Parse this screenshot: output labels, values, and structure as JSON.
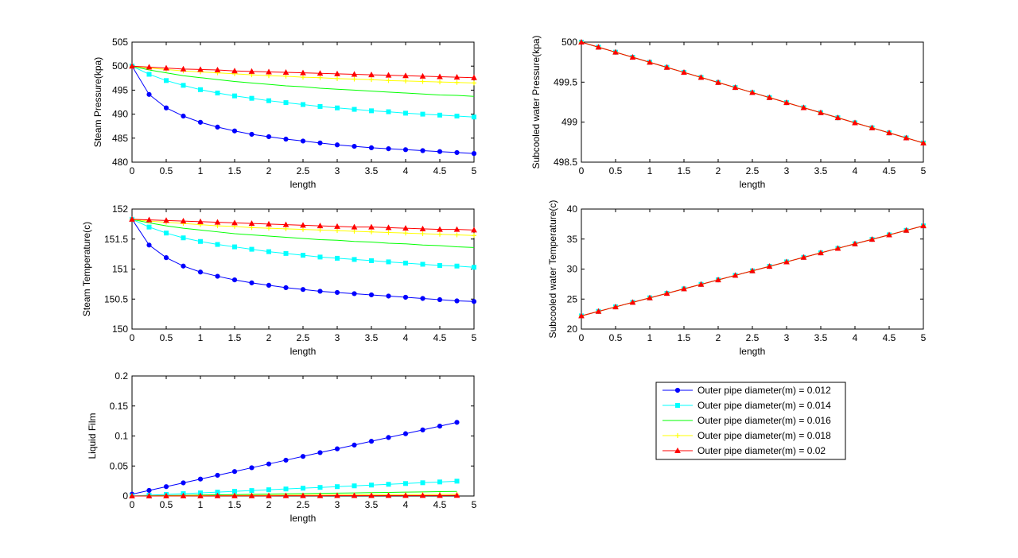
{
  "series_styles": [
    {
      "name": "Outer pipe diameter(m) = 0.012",
      "color": "#0000ff",
      "marker": "circle"
    },
    {
      "name": "Outer pipe diameter(m) = 0.014",
      "color": "#00ffff",
      "marker": "square"
    },
    {
      "name": "Outer pipe diameter(m) = 0.016",
      "color": "#00ff00",
      "marker": "none"
    },
    {
      "name": "Outer pipe diameter(m) = 0.018",
      "color": "#ffff00",
      "marker": "plus"
    },
    {
      "name": "Outer pipe diameter(m) = 0.02",
      "color": "#ff0000",
      "marker": "triangle"
    }
  ],
  "legend": {
    "placement": "below right plots",
    "entries": [
      "Outer pipe diameter(m) = 0.012",
      "Outer pipe diameter(m) = 0.014",
      "Outer pipe diameter(m) = 0.016",
      "Outer pipe diameter(m) = 0.018",
      "Outer pipe diameter(m) = 0.02"
    ]
  },
  "chart_data": [
    {
      "type": "line",
      "id": "steam-pressure",
      "xlabel": "length",
      "ylabel": "Steam Pressure(kpa)",
      "xlim": [
        0,
        5
      ],
      "ylim": [
        480,
        505
      ],
      "xticks": [
        "0",
        "0.5",
        "1",
        "1.5",
        "2",
        "2.5",
        "3",
        "3.5",
        "4",
        "4.5",
        "5"
      ],
      "yticks": [
        "480",
        "485",
        "490",
        "495",
        "500",
        "505"
      ],
      "x": [
        0,
        0.25,
        0.5,
        0.75,
        1,
        1.25,
        1.5,
        1.75,
        2,
        2.25,
        2.5,
        2.75,
        3,
        3.25,
        3.5,
        3.75,
        4,
        4.25,
        4.5,
        4.75,
        5
      ],
      "series": [
        {
          "name": "Outer pipe diameter(m) = 0.012",
          "values": [
            500,
            494.1,
            491.3,
            489.6,
            488.3,
            487.3,
            486.5,
            485.8,
            485.3,
            484.8,
            484.4,
            484.0,
            483.6,
            483.3,
            483.0,
            482.8,
            482.6,
            482.4,
            482.2,
            482.0,
            481.8
          ]
        },
        {
          "name": "Outer pipe diameter(m) = 0.014",
          "values": [
            500,
            498.3,
            497.0,
            496.0,
            495.1,
            494.4,
            493.8,
            493.3,
            492.8,
            492.4,
            492.0,
            491.6,
            491.3,
            491.0,
            490.7,
            490.5,
            490.2,
            490.0,
            489.8,
            489.6,
            489.4
          ]
        },
        {
          "name": "Outer pipe diameter(m) = 0.016",
          "values": [
            500,
            499.2,
            498.6,
            498.0,
            497.6,
            497.2,
            496.8,
            496.5,
            496.2,
            495.9,
            495.7,
            495.4,
            495.2,
            495.0,
            494.8,
            494.6,
            494.4,
            494.2,
            494.0,
            493.9,
            493.7
          ]
        },
        {
          "name": "Outer pipe diameter(m) = 0.018",
          "values": [
            500,
            499.6,
            499.3,
            499.0,
            498.8,
            498.6,
            498.4,
            498.2,
            498.0,
            497.9,
            497.7,
            497.6,
            497.4,
            497.3,
            497.2,
            497.0,
            496.9,
            496.8,
            496.7,
            496.6,
            496.5
          ]
        },
        {
          "name": "Outer pipe diameter(m) = 0.02",
          "values": [
            500,
            499.8,
            499.6,
            499.4,
            499.3,
            499.2,
            499.0,
            498.9,
            498.8,
            498.7,
            498.6,
            498.5,
            498.4,
            498.3,
            498.2,
            498.1,
            498.0,
            497.9,
            497.8,
            497.7,
            497.6
          ]
        }
      ]
    },
    {
      "type": "line",
      "id": "subcooled-pressure",
      "xlabel": "length",
      "ylabel": "Subcooled water Pressure(kpa)",
      "xlim": [
        0,
        5
      ],
      "ylim": [
        498.5,
        500
      ],
      "xticks": [
        "0",
        "0.5",
        "1",
        "1.5",
        "2",
        "2.5",
        "3",
        "3.5",
        "4",
        "4.5",
        "5"
      ],
      "yticks": [
        "498.5",
        "499",
        "499.5",
        "500"
      ],
      "x": [
        0,
        0.25,
        0.5,
        0.75,
        1,
        1.25,
        1.5,
        1.75,
        2,
        2.25,
        2.5,
        2.75,
        3,
        3.25,
        3.5,
        3.75,
        4,
        4.25,
        4.5,
        4.75,
        5
      ],
      "series": [
        {
          "name": "Outer pipe diameter(m) = 0.012",
          "values": [
            500,
            499.937,
            499.874,
            499.811,
            499.748,
            499.685,
            499.622,
            499.559,
            499.496,
            499.433,
            499.37,
            499.307,
            499.244,
            499.181,
            499.118,
            499.055,
            498.992,
            498.929,
            498.866,
            498.803,
            498.74
          ]
        },
        {
          "name": "Outer pipe diameter(m) = 0.014",
          "values": [
            500,
            499.937,
            499.874,
            499.811,
            499.748,
            499.685,
            499.622,
            499.559,
            499.496,
            499.433,
            499.37,
            499.307,
            499.244,
            499.181,
            499.118,
            499.055,
            498.992,
            498.929,
            498.866,
            498.803,
            498.74
          ]
        },
        {
          "name": "Outer pipe diameter(m) = 0.016",
          "values": [
            500,
            499.937,
            499.874,
            499.811,
            499.748,
            499.685,
            499.622,
            499.559,
            499.496,
            499.433,
            499.37,
            499.307,
            499.244,
            499.181,
            499.118,
            499.055,
            498.992,
            498.929,
            498.866,
            498.803,
            498.74
          ]
        },
        {
          "name": "Outer pipe diameter(m) = 0.018",
          "values": [
            500,
            499.937,
            499.874,
            499.811,
            499.748,
            499.685,
            499.622,
            499.559,
            499.496,
            499.433,
            499.37,
            499.307,
            499.244,
            499.181,
            499.118,
            499.055,
            498.992,
            498.929,
            498.866,
            498.803,
            498.74
          ]
        },
        {
          "name": "Outer pipe diameter(m) = 0.02",
          "values": [
            500,
            499.937,
            499.874,
            499.811,
            499.748,
            499.685,
            499.622,
            499.559,
            499.496,
            499.433,
            499.37,
            499.307,
            499.244,
            499.181,
            499.118,
            499.055,
            498.992,
            498.929,
            498.866,
            498.803,
            498.74
          ]
        }
      ]
    },
    {
      "type": "line",
      "id": "steam-temperature",
      "xlabel": "length",
      "ylabel": "Steam Temperature(c)",
      "xlim": [
        0,
        5
      ],
      "ylim": [
        150,
        152
      ],
      "xticks": [
        "0",
        "0.5",
        "1",
        "1.5",
        "2",
        "2.5",
        "3",
        "3.5",
        "4",
        "4.5",
        "5"
      ],
      "yticks": [
        "150",
        "150.5",
        "151",
        "151.5",
        "152"
      ],
      "x": [
        0,
        0.25,
        0.5,
        0.75,
        1,
        1.25,
        1.5,
        1.75,
        2,
        2.25,
        2.5,
        2.75,
        3,
        3.25,
        3.5,
        3.75,
        4,
        4.25,
        4.5,
        4.75,
        5
      ],
      "series": [
        {
          "name": "Outer pipe diameter(m) = 0.012",
          "values": [
            151.83,
            151.4,
            151.19,
            151.05,
            150.95,
            150.88,
            150.82,
            150.77,
            150.73,
            150.69,
            150.66,
            150.63,
            150.61,
            150.59,
            150.57,
            150.55,
            150.53,
            150.51,
            150.49,
            150.47,
            150.46
          ]
        },
        {
          "name": "Outer pipe diameter(m) = 0.014",
          "values": [
            151.83,
            151.7,
            151.6,
            151.52,
            151.46,
            151.41,
            151.37,
            151.33,
            151.29,
            151.26,
            151.23,
            151.2,
            151.18,
            151.16,
            151.14,
            151.12,
            151.1,
            151.08,
            151.06,
            151.05,
            151.03
          ]
        },
        {
          "name": "Outer pipe diameter(m) = 0.016",
          "values": [
            151.83,
            151.77,
            151.72,
            151.68,
            151.65,
            151.62,
            151.59,
            151.57,
            151.55,
            151.53,
            151.51,
            151.49,
            151.48,
            151.46,
            151.45,
            151.43,
            151.42,
            151.4,
            151.39,
            151.37,
            151.36
          ]
        },
        {
          "name": "Outer pipe diameter(m) = 0.018",
          "values": [
            151.83,
            151.8,
            151.78,
            151.76,
            151.74,
            151.72,
            151.71,
            151.69,
            151.68,
            151.67,
            151.66,
            151.65,
            151.64,
            151.63,
            151.62,
            151.61,
            151.6,
            151.59,
            151.58,
            151.57,
            151.56
          ]
        },
        {
          "name": "Outer pipe diameter(m) = 0.02",
          "values": [
            151.83,
            151.82,
            151.81,
            151.8,
            151.79,
            151.78,
            151.77,
            151.76,
            151.75,
            151.74,
            151.73,
            151.72,
            151.71,
            151.7,
            151.7,
            151.69,
            151.68,
            151.67,
            151.66,
            151.66,
            151.65
          ]
        }
      ]
    },
    {
      "type": "line",
      "id": "subcooled-temperature",
      "xlabel": "length",
      "ylabel": "Subcooled water Temperature(c)",
      "xlim": [
        0,
        5
      ],
      "ylim": [
        20,
        40
      ],
      "xticks": [
        "0",
        "0.5",
        "1",
        "1.5",
        "2",
        "2.5",
        "3",
        "3.5",
        "4",
        "4.5",
        "5"
      ],
      "yticks": [
        "20",
        "25",
        "30",
        "35",
        "40"
      ],
      "x": [
        0,
        0.25,
        0.5,
        0.75,
        1,
        1.25,
        1.5,
        1.75,
        2,
        2.25,
        2.5,
        2.75,
        3,
        3.25,
        3.5,
        3.75,
        4,
        4.25,
        4.5,
        4.75,
        5
      ],
      "series": [
        {
          "name": "Outer pipe diameter(m) = 0.012",
          "values": [
            22.2,
            22.95,
            23.7,
            24.45,
            25.2,
            25.95,
            26.7,
            27.45,
            28.2,
            28.95,
            29.7,
            30.45,
            31.2,
            31.95,
            32.7,
            33.45,
            34.2,
            34.95,
            35.7,
            36.45,
            37.2
          ]
        },
        {
          "name": "Outer pipe diameter(m) = 0.014",
          "values": [
            22.2,
            22.95,
            23.7,
            24.45,
            25.2,
            25.95,
            26.7,
            27.45,
            28.2,
            28.95,
            29.7,
            30.45,
            31.2,
            31.95,
            32.7,
            33.45,
            34.2,
            34.95,
            35.7,
            36.45,
            37.2
          ]
        },
        {
          "name": "Outer pipe diameter(m) = 0.016",
          "values": [
            22.2,
            22.95,
            23.7,
            24.45,
            25.2,
            25.95,
            26.7,
            27.45,
            28.2,
            28.95,
            29.7,
            30.45,
            31.2,
            31.95,
            32.7,
            33.45,
            34.2,
            34.95,
            35.7,
            36.45,
            37.2
          ]
        },
        {
          "name": "Outer pipe diameter(m) = 0.018",
          "values": [
            22.2,
            22.95,
            23.7,
            24.45,
            25.2,
            25.95,
            26.7,
            27.45,
            28.2,
            28.95,
            29.7,
            30.45,
            31.2,
            31.95,
            32.7,
            33.45,
            34.2,
            34.95,
            35.7,
            36.45,
            37.2
          ]
        },
        {
          "name": "Outer pipe diameter(m) = 0.02",
          "values": [
            22.2,
            22.95,
            23.7,
            24.45,
            25.2,
            25.95,
            26.7,
            27.45,
            28.2,
            28.95,
            29.7,
            30.45,
            31.2,
            31.95,
            32.7,
            33.45,
            34.2,
            34.95,
            35.7,
            36.45,
            37.2
          ]
        }
      ]
    },
    {
      "type": "line",
      "id": "liquid-film",
      "xlabel": "length",
      "ylabel": "Liquid Film",
      "xlim": [
        0,
        5
      ],
      "ylim": [
        0,
        0.2
      ],
      "xticks": [
        "0",
        "0.5",
        "1",
        "1.5",
        "2",
        "2.5",
        "3",
        "3.5",
        "4",
        "4.5",
        "5"
      ],
      "yticks": [
        "0",
        "0.05",
        "0.1",
        "0.15",
        "0.2"
      ],
      "x": [
        0,
        0.25,
        0.5,
        0.75,
        1,
        1.25,
        1.5,
        1.75,
        2,
        2.25,
        2.5,
        2.75,
        3,
        3.25,
        3.5,
        3.75,
        4,
        4.25,
        4.5,
        4.75
      ],
      "series": [
        {
          "name": "Outer pipe diameter(m) = 0.012",
          "values": [
            0.003,
            0.0093,
            0.0156,
            0.0219,
            0.0282,
            0.0345,
            0.0408,
            0.0471,
            0.0534,
            0.0597,
            0.066,
            0.0723,
            0.0786,
            0.0849,
            0.0912,
            0.0975,
            0.1038,
            0.1101,
            0.1164,
            0.1227
          ]
        },
        {
          "name": "Outer pipe diameter(m) = 0.014",
          "values": [
            0,
            0.0013,
            0.0026,
            0.0039,
            0.0052,
            0.0065,
            0.0078,
            0.0091,
            0.0104,
            0.0117,
            0.013,
            0.0143,
            0.0156,
            0.0169,
            0.0182,
            0.0195,
            0.0208,
            0.0221,
            0.0234,
            0.0247
          ]
        },
        {
          "name": "Outer pipe diameter(m) = 0.016",
          "values": [
            0,
            0.0004,
            0.0008,
            0.0012,
            0.0016,
            0.002,
            0.0024,
            0.0028,
            0.0032,
            0.0036,
            0.004,
            0.0044,
            0.0048,
            0.0052,
            0.0056,
            0.006,
            0.0064,
            0.0068,
            0.0072,
            0.0076
          ]
        },
        {
          "name": "Outer pipe diameter(m) = 0.018",
          "values": [
            0,
            0.0001,
            0.0003,
            0.0004,
            0.0006,
            0.0007,
            0.0009,
            0.001,
            0.0012,
            0.0013,
            0.0015,
            0.0016,
            0.0018,
            0.0019,
            0.0021,
            0.0022,
            0.0024,
            0.0025,
            0.0027,
            0.0028
          ]
        },
        {
          "name": "Outer pipe diameter(m) = 0.02",
          "values": [
            0,
            5e-05,
            0.0001,
            0.00015,
            0.0002,
            0.00025,
            0.0003,
            0.00035,
            0.0004,
            0.00045,
            0.0005,
            0.00055,
            0.0006,
            0.00065,
            0.0007,
            0.00075,
            0.0008,
            0.00085,
            0.0009,
            0.00095
          ]
        }
      ]
    }
  ]
}
